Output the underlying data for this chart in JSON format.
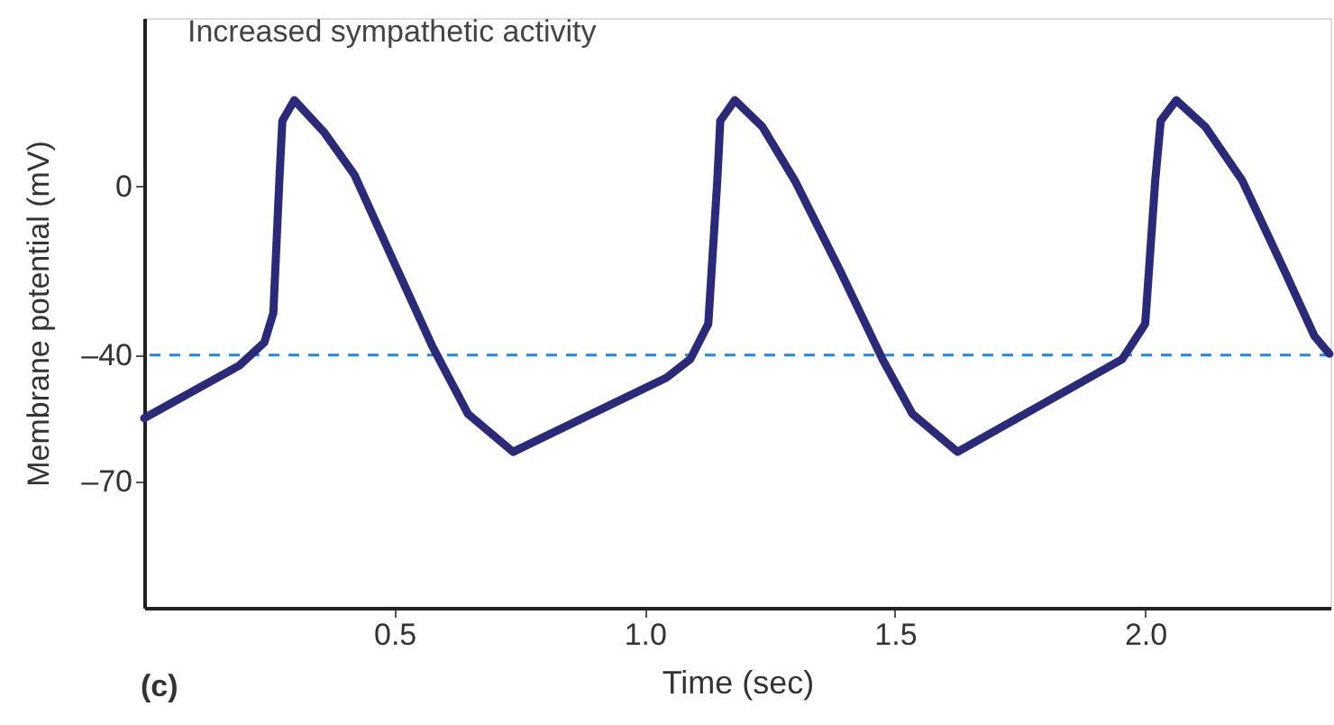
{
  "chart_data": {
    "type": "line",
    "title": "Increased sympathetic activity",
    "xlabel": "Time (sec)",
    "ylabel": "Membrane potential (mV)",
    "annotations": [
      "(c)"
    ],
    "x": [
      0,
      0.19,
      0.24,
      0.258,
      0.27,
      0.276,
      0.3,
      0.36,
      0.42,
      0.49,
      0.576,
      0.647,
      0.737,
      1.043,
      1.091,
      1.127,
      1.145,
      1.151,
      1.18,
      1.235,
      1.3,
      1.39,
      1.475,
      1.535,
      1.625,
      1.954,
      2.0,
      2.02,
      2.031,
      2.062,
      2.12,
      2.194,
      2.278,
      2.338,
      2.368
    ],
    "series": [
      {
        "color": "#2b2a7a",
        "values": [
          -55,
          -42.5,
          -37,
          -30,
          1.4,
          15.6,
          20.5,
          12.8,
          2.8,
          -15.6,
          -38,
          -54,
          -63,
          -45.4,
          -41,
          -32.6,
          1.4,
          15.6,
          20.5,
          14.2,
          1.4,
          -19.9,
          -41,
          -54,
          -63,
          -41,
          -32.6,
          1.4,
          15.6,
          20.5,
          14.2,
          1.4,
          -19.9,
          -35.5,
          -39.7
        ]
      }
    ],
    "xlim": [
      0,
      2.37
    ],
    "ylim": [
      -100,
      40
    ],
    "xticks": [
      {
        "value": 0.5,
        "label": "0.5"
      },
      {
        "value": 1.0,
        "label": "1.0"
      },
      {
        "value": 1.5,
        "label": "1.5"
      },
      {
        "value": 2.0,
        "label": "2.0"
      }
    ],
    "yticks": [
      {
        "value": -70,
        "label": "–70"
      },
      {
        "value": -40,
        "label": "–40"
      },
      0
    ],
    "ref_lines": [
      {
        "axis": "y",
        "value": -40,
        "color": "#1e88e5",
        "line_style": "dashed"
      }
    ],
    "grid": false,
    "line_style": "solid",
    "marker": "none"
  }
}
